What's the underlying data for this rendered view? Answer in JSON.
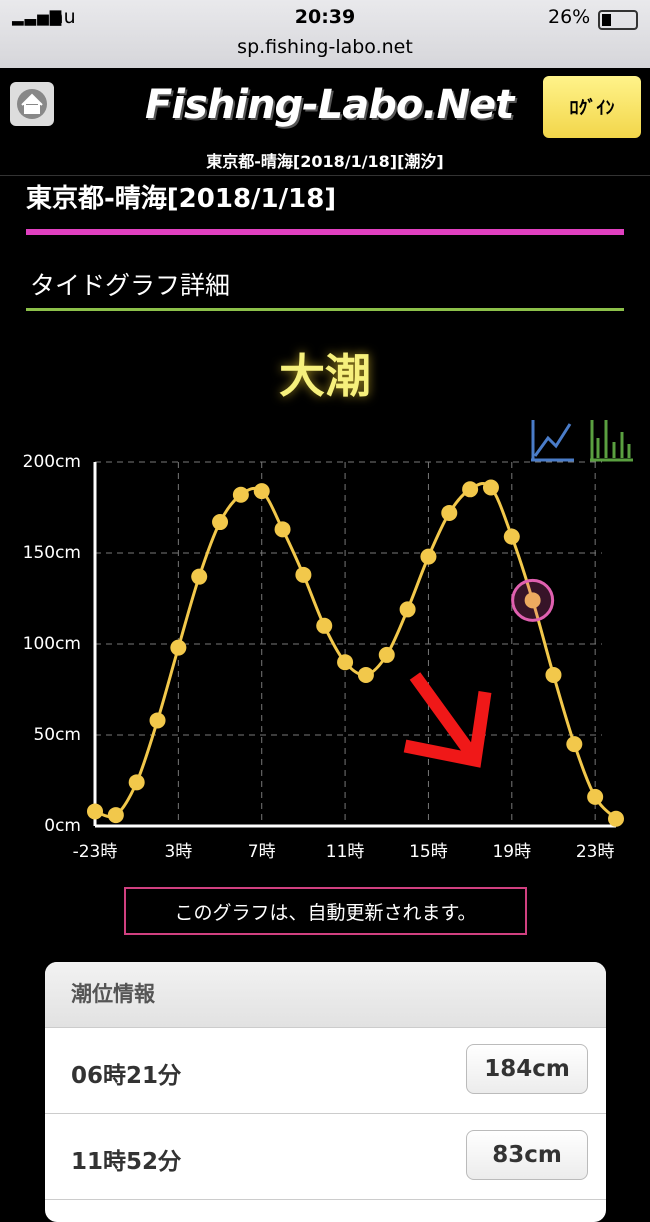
{
  "status_bar": {
    "carrier": "au",
    "time": "20:39",
    "battery": "26%"
  },
  "url": "sp.fishing-labo.net",
  "header": {
    "logo": "Fishing-Labo.Net",
    "login": "ﾛｸﾞｲﾝ",
    "subtitle": "東京都-晴海[2018/1/18][潮汐]"
  },
  "page_title": "東京都-晴海[2018/1/18]",
  "section_title": "タイドグラフ詳細",
  "tide_name": "大潮",
  "chart_data": {
    "type": "line",
    "x": [
      -1,
      0,
      1,
      2,
      3,
      4,
      5,
      6,
      7,
      8,
      9,
      10,
      11,
      12,
      13,
      14,
      15,
      16,
      17,
      18,
      19,
      20,
      21,
      22,
      23,
      24
    ],
    "series": [
      {
        "color": "#f2c84b",
        "values": [
          8,
          6,
          24,
          58,
          98,
          137,
          167,
          182,
          184,
          163,
          138,
          110,
          90,
          83,
          94,
          119,
          148,
          172,
          185,
          186,
          159,
          124,
          83,
          45,
          16,
          4
        ]
      }
    ],
    "xlim": [
      -1,
      24
    ],
    "xticks": [
      {
        "value": -1,
        "label": "-23時"
      },
      {
        "value": 3,
        "label": "3時"
      },
      {
        "value": 7,
        "label": "7時"
      },
      {
        "value": 11,
        "label": "11時"
      },
      {
        "value": 15,
        "label": "15時"
      },
      {
        "value": 19,
        "label": "19時"
      },
      {
        "value": 23,
        "label": "23時"
      }
    ],
    "ylim": [
      0,
      200
    ],
    "yticks": [
      {
        "value": 0,
        "label": "0cm"
      },
      {
        "value": 50,
        "label": "50cm"
      },
      {
        "value": 100,
        "label": "100cm"
      },
      {
        "value": 150,
        "label": "150cm"
      },
      {
        "value": 200,
        "label": "200cm"
      }
    ],
    "grid": true,
    "current_x": 20
  },
  "note": "このグラフは、自動更新されます。",
  "tide_info": {
    "title": "潮位情報",
    "rows": [
      [
        "06時21分",
        "184cm"
      ],
      [
        "11時52分",
        "83cm"
      ]
    ]
  }
}
